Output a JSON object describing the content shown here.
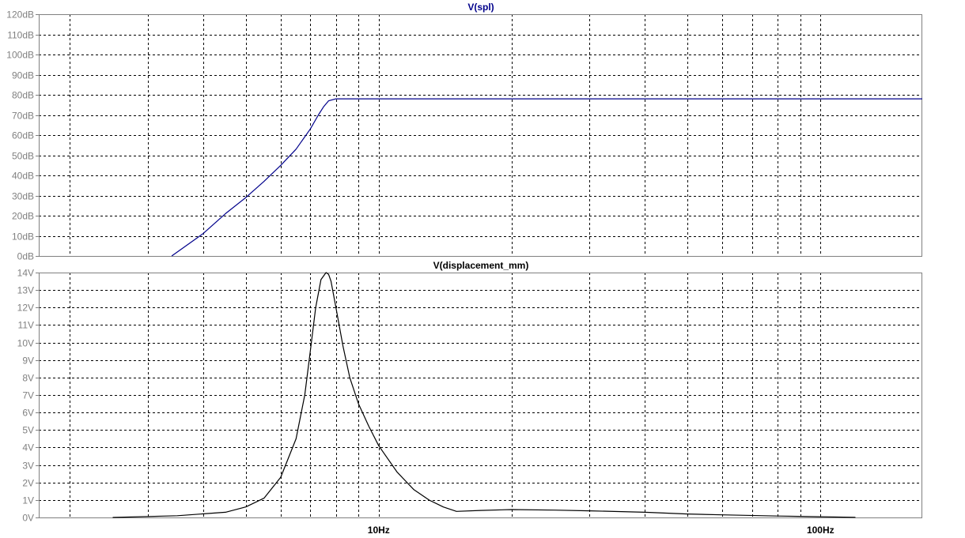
{
  "chart_data": [
    {
      "type": "line",
      "title": "V(spl)",
      "x_scale": "log",
      "xlim_hz": [
        1.7,
        170
      ],
      "ylim": [
        0,
        120
      ],
      "y_ticks": [
        0,
        10,
        20,
        30,
        40,
        50,
        60,
        70,
        80,
        90,
        100,
        110,
        120
      ],
      "y_tick_labels": [
        "0dB",
        "10dB",
        "20dB",
        "30dB",
        "40dB",
        "50dB",
        "60dB",
        "70dB",
        "80dB",
        "90dB",
        "100dB",
        "110dB",
        "120dB"
      ],
      "grid": true,
      "color": "#00008B",
      "series": [
        {
          "x": [
            3.4,
            4.0,
            4.5,
            5.0,
            5.5,
            6.0,
            6.5,
            7.0,
            7.3,
            7.5,
            7.7,
            8.0,
            10,
            20,
            50,
            100,
            170
          ],
          "y": [
            0,
            11,
            21,
            29,
            37,
            45,
            53,
            63,
            70,
            74,
            77,
            78,
            78,
            78,
            78,
            78,
            78
          ]
        }
      ]
    },
    {
      "type": "line",
      "title": "V(displacement_mm)",
      "x_scale": "log",
      "xlim_hz": [
        1.7,
        170
      ],
      "ylim": [
        0,
        14
      ],
      "y_ticks": [
        0,
        1,
        2,
        3,
        4,
        5,
        6,
        7,
        8,
        9,
        10,
        11,
        12,
        13,
        14
      ],
      "y_tick_labels": [
        "0V",
        "1V",
        "2V",
        "3V",
        "4V",
        "5V",
        "6V",
        "7V",
        "8V",
        "9V",
        "10V",
        "11V",
        "12V",
        "13V",
        "14V"
      ],
      "x_tick_labels": [
        "10Hz",
        "100Hz"
      ],
      "x_label_values": [
        10,
        100
      ],
      "grid": true,
      "color": "#000000",
      "series": [
        {
          "x": [
            2.5,
            3.5,
            4.5,
            5.0,
            5.5,
            6.0,
            6.5,
            6.8,
            7.0,
            7.2,
            7.4,
            7.6,
            7.7,
            7.8,
            8.0,
            8.3,
            8.6,
            9.0,
            9.5,
            10.0,
            11.0,
            12.0,
            13.0,
            14.0,
            15.0,
            17.0,
            20.0,
            25.0,
            30.0,
            40.0,
            50.0,
            60.0,
            80.0,
            100.0,
            120.0
          ],
          "y": [
            0.0,
            0.1,
            0.3,
            0.6,
            1.1,
            2.3,
            4.5,
            7.0,
            9.5,
            12.0,
            13.6,
            14.0,
            13.9,
            13.5,
            12.0,
            9.8,
            8.0,
            6.5,
            5.2,
            4.1,
            2.6,
            1.6,
            1.0,
            0.6,
            0.35,
            0.4,
            0.45,
            0.42,
            0.38,
            0.3,
            0.2,
            0.15,
            0.08,
            0.04,
            0.01
          ]
        }
      ]
    }
  ]
}
